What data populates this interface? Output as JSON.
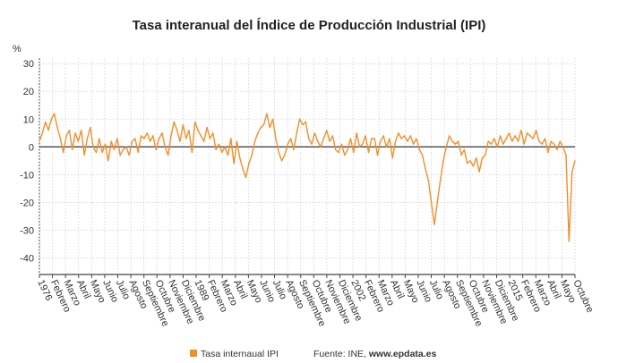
{
  "chart_data": {
    "type": "line",
    "title": "Tasa interanual del Índice de Producción Industrial (IPI)",
    "ylabel": "%",
    "xlabel": "",
    "ylim": [
      -46,
      32
    ],
    "yticks": [
      30,
      20,
      10,
      0,
      -10,
      -20,
      -30,
      -40
    ],
    "xtick_labels": [
      "1976",
      "Febrero",
      "Marzo",
      "Abril",
      "Mayo",
      "Junio",
      "Julio",
      "Agosto",
      "Septiembre",
      "Octubre",
      "Noviembre",
      "Diciembre",
      "1989",
      "Febrero",
      "Marzo",
      "Abril",
      "Mayo",
      "Junio",
      "Julio",
      "Agosto",
      "Septiembre",
      "Octubre",
      "Noviembre",
      "Diciembre",
      "2002",
      "Febrero",
      "Marzo",
      "Abril",
      "Mayo",
      "Junio",
      "Julio",
      "Agosto",
      "Septiembre",
      "Octubre",
      "Noviembre",
      "Diciembre",
      "2015",
      "Febrero",
      "Marzo",
      "Abril",
      "Mayo",
      "Octubre"
    ],
    "grid": true,
    "legend_position": "bottom",
    "series": [
      {
        "name": "Tasa internaual IPI",
        "color": "#f28e2b",
        "sampling": "quarterly",
        "data": {
          "1976": [
            2,
            5,
            9,
            6
          ],
          "1977": [
            10,
            12,
            7,
            3
          ],
          "1978": [
            -2,
            4,
            6,
            -1
          ],
          "1979": [
            5,
            2,
            6,
            -3
          ],
          "1980": [
            3,
            7,
            0,
            -2
          ],
          "1981": [
            3,
            -2,
            1,
            -5
          ],
          "1982": [
            2,
            -1,
            3,
            -3
          ],
          "1983": [
            -1,
            0,
            -3,
            2
          ],
          "1984": [
            3,
            -2,
            4,
            3
          ],
          "1985": [
            5,
            2,
            4,
            -1
          ],
          "1986": [
            3,
            5,
            0,
            -3
          ],
          "1987": [
            4,
            9,
            6,
            2
          ],
          "1988": [
            8,
            3,
            6,
            -2
          ],
          "1989": [
            9,
            6,
            4,
            2
          ],
          "1990": [
            7,
            3,
            5,
            -1
          ],
          "1991": [
            1,
            -2,
            0,
            -3
          ],
          "1992": [
            3,
            -6,
            2,
            -4
          ],
          "1993": [
            -8,
            -11,
            -6,
            -3
          ],
          "1994": [
            2,
            5,
            7,
            8
          ],
          "1995": [
            12,
            7,
            10,
            3
          ],
          "1996": [
            -2,
            -5,
            -3,
            1
          ],
          "1997": [
            3,
            -1,
            5,
            10
          ],
          "1998": [
            8,
            9,
            3,
            1
          ],
          "1999": [
            5,
            2,
            0,
            3
          ],
          "2000": [
            6,
            2,
            4,
            -1
          ],
          "2001": [
            -2,
            1,
            -3,
            -1
          ],
          "2002": [
            3,
            -2,
            5,
            0
          ],
          "2003": [
            1,
            4,
            -2,
            3
          ],
          "2004": [
            3,
            -3,
            2,
            4
          ],
          "2005": [
            0,
            3,
            -4,
            2
          ],
          "2006": [
            5,
            3,
            4,
            2
          ],
          "2007": [
            4,
            1,
            3,
            -1
          ],
          "2008": [
            -3,
            -8,
            -12,
            -20
          ],
          "2009": [
            -28,
            -20,
            -12,
            -5
          ],
          "2010": [
            0,
            4,
            2,
            1
          ],
          "2011": [
            2,
            -3,
            -1,
            -6
          ],
          "2012": [
            -5,
            -7,
            -4,
            -9
          ],
          "2013": [
            -4,
            -3,
            2,
            1
          ],
          "2014": [
            3,
            0,
            4,
            1
          ],
          "2015": [
            3,
            5,
            2,
            4
          ],
          "2016": [
            2,
            6,
            1,
            5
          ],
          "2017": [
            4,
            3,
            6,
            2
          ],
          "2018": [
            1,
            3,
            -2,
            2
          ],
          "2019": [
            1,
            -1,
            2,
            0
          ],
          "2020": [
            -3,
            -34,
            -9,
            -5
          ]
        }
      }
    ]
  },
  "legend": {
    "label": "Tasa internaual IPI"
  },
  "source": {
    "prefix": "Fuente: INE, ",
    "site": "www.epdata.es"
  }
}
